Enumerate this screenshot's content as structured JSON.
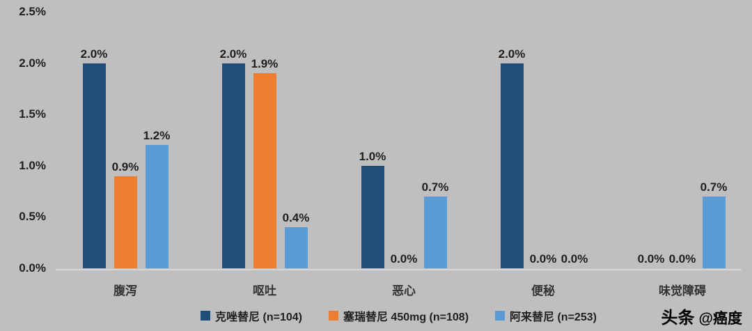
{
  "chart_data": {
    "type": "bar",
    "title": "",
    "categories": [
      "腹泻",
      "呕吐",
      "恶心",
      "便秘",
      "味觉障碍"
    ],
    "series": [
      {
        "name": "克唑替尼 (n=104)",
        "color": "#1F4E79",
        "values": [
          2.0,
          2.0,
          1.0,
          2.0,
          0.0
        ]
      },
      {
        "name": "塞瑞替尼 450mg (n=108)",
        "color": "#ED7D31",
        "values": [
          0.9,
          1.9,
          0.0,
          0.0,
          0.0
        ]
      },
      {
        "name": "阿来替尼 (n=253)",
        "color": "#5B9BD5",
        "values": [
          1.2,
          0.4,
          0.7,
          0.0,
          0.7
        ]
      }
    ],
    "value_label_format": "percent_1dp",
    "y_ticks": [
      "0.0%",
      "0.5%",
      "1.0%",
      "1.5%",
      "2.0%",
      "2.5%"
    ],
    "ylim": [
      0,
      2.5
    ],
    "grid": false,
    "legend_position": "bottom"
  },
  "watermark": {
    "brand": "头条",
    "handle": "@癌度"
  },
  "theme": {
    "background": "#BFBFBF",
    "axis_line": "#D6D6D6",
    "text": "#1F1F1F"
  }
}
